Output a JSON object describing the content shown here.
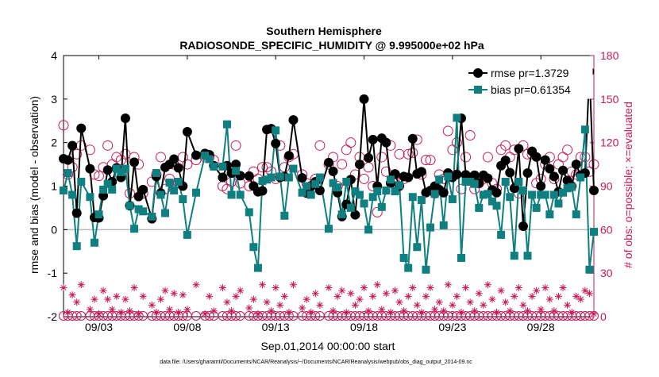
{
  "chart_data": {
    "type": "line",
    "title_line1": "Southern Hemisphere",
    "title_line2": "RADIOSONDE_SPECIFIC_HUMIDITY @ 9.995000e+02 hPa",
    "xlabel": "Sep.01,2014 00:00:00 start",
    "ylabel_left": "rmse and bias (model - observation)",
    "ylabel_right": "# of obs: o=possible; ×=evaluated",
    "footnote": "data file: /Users/gharamti/Documents/NCAR/Reanalysis/~/Documents/NCAR/Reanalysis/webpub/obs_diag_output_2014-09.nc",
    "xlim": [
      1,
      31
    ],
    "ylim_left": [
      -2,
      4
    ],
    "ylim_right": [
      0,
      180
    ],
    "x_ticks": [
      3,
      8,
      13,
      18,
      23,
      28
    ],
    "x_tick_labels": [
      "09/03",
      "09/08",
      "09/13",
      "09/18",
      "09/23",
      "09/28"
    ],
    "y_ticks_left": [
      -2,
      -1,
      0,
      1,
      2,
      3,
      4
    ],
    "y_tick_labels_left": [
      "-2",
      "-1",
      "0",
      "1",
      "2",
      "3",
      "4"
    ],
    "y_ticks_right": [
      0,
      30,
      60,
      90,
      120,
      150,
      180
    ],
    "y_tick_labels_right": [
      "0",
      "30",
      "60",
      "90",
      "120",
      "150",
      "180"
    ],
    "colors": {
      "rmse": "#000000",
      "bias": "#0f7f80",
      "obs": "#c8185a",
      "zero_line": "#bbbbbb"
    },
    "series": [
      {
        "name": "rmse pr=1.3729",
        "axis": "left",
        "x": [
          1.0,
          1.25,
          1.5,
          1.75,
          2.0,
          2.5,
          2.75,
          3.0,
          3.25,
          3.5,
          3.75,
          4.0,
          4.25,
          4.5,
          4.75,
          5.0,
          5.25,
          5.5,
          6.0,
          6.25,
          6.5,
          6.75,
          7.0,
          7.25,
          7.5,
          7.75,
          8.0,
          8.5,
          9.0,
          9.25,
          9.5,
          10.0,
          10.25,
          10.5,
          10.75,
          11.0,
          11.5,
          11.75,
          12.0,
          12.25,
          12.5,
          12.75,
          13.0,
          13.25,
          13.5,
          13.75,
          14.0,
          14.5,
          14.75,
          15.0,
          15.25,
          15.5,
          16.0,
          16.25,
          16.5,
          16.75,
          17.0,
          17.25,
          17.5,
          17.75,
          18.0,
          18.25,
          18.5,
          18.75,
          19.0,
          19.25,
          19.5,
          19.75,
          20.0,
          20.25,
          20.5,
          20.75,
          21.0,
          21.25,
          21.5,
          21.75,
          22.0,
          22.25,
          22.5,
          22.75,
          23.0,
          23.25,
          23.5,
          23.75,
          24.0,
          24.25,
          24.5,
          24.75,
          25.0,
          25.25,
          25.5,
          25.75,
          26.0,
          26.25,
          26.5,
          26.75,
          27.0,
          27.25,
          27.5,
          27.75,
          28.0,
          28.25,
          28.5,
          28.75,
          29.0,
          29.25,
          29.5,
          29.75,
          30.0,
          30.25,
          30.5,
          30.75,
          31.0
        ],
        "values": [
          1.63,
          1.6,
          1.93,
          0.38,
          2.33,
          1.4,
          0.28,
          0.27,
          0.78,
          1.37,
          1.1,
          1.42,
          1.2,
          2.56,
          0.55,
          1.55,
          0.76,
          0.92,
          0.25,
          1.22,
          0.84,
          1.43,
          1.5,
          1.62,
          1.42,
          1.0,
          2.25,
          1.71,
          1.75,
          1.72,
          1.47,
          1.2,
          1.47,
          1.3,
          1.5,
          1.24,
          1.23,
          1.0,
          0.87,
          0.89,
          2.3,
          2.32,
          1.98,
          1.2,
          1.22,
          1.7,
          2.52,
          1.19,
          0.84,
          1.0,
          1.1,
          0.9,
          1.54,
          1.34,
          0.85,
          0.3,
          0.58,
          1.15,
          0.34,
          1.5,
          3.0,
          1.65,
          2.07,
          1.0,
          2.1,
          2.0,
          1.07,
          1.28,
          1.0,
          1.22,
          1.2,
          2.09,
          1.28,
          1.33,
          0.85,
          0.9,
          1.0,
          0.92,
          0.85,
          1.3,
          1.2,
          1.27,
          2.56,
          1.26,
          1.2,
          1.25,
          1.07,
          1.25,
          1.18,
          0.91,
          0.85,
          1.47,
          1.59,
          1.31,
          0.95,
          1.86,
          0.08,
          1.3,
          1.8,
          1.67,
          1.0,
          1.6,
          1.4,
          1.22,
          0.87,
          1.36,
          1.13,
          1.0,
          1.5,
          1.25,
          1.3,
          3.63,
          0.9
        ],
        "marker": "filled-circle"
      },
      {
        "name": "bias pr=0.61354",
        "axis": "left",
        "x": [
          1.0,
          1.25,
          1.5,
          1.75,
          2.0,
          2.5,
          2.75,
          3.0,
          3.25,
          3.5,
          3.75,
          4.0,
          4.25,
          4.5,
          4.75,
          5.0,
          5.25,
          5.5,
          6.0,
          6.25,
          6.5,
          6.75,
          7.0,
          7.25,
          7.5,
          7.75,
          8.0,
          8.5,
          9.0,
          9.25,
          9.5,
          10.0,
          10.25,
          10.5,
          10.75,
          11.0,
          11.5,
          11.75,
          12.0,
          12.25,
          12.5,
          12.75,
          13.0,
          13.25,
          13.5,
          13.75,
          14.0,
          14.5,
          14.75,
          15.0,
          15.25,
          15.5,
          16.0,
          16.25,
          16.5,
          16.75,
          17.0,
          17.25,
          17.5,
          17.75,
          18.0,
          18.25,
          18.5,
          18.75,
          19.0,
          19.25,
          19.5,
          19.75,
          20.0,
          20.25,
          20.5,
          20.75,
          21.0,
          21.25,
          21.5,
          21.75,
          22.0,
          22.25,
          22.5,
          22.75,
          23.0,
          23.25,
          23.5,
          23.75,
          24.0,
          24.25,
          24.5,
          24.75,
          25.0,
          25.25,
          25.5,
          25.75,
          26.0,
          26.25,
          26.5,
          26.75,
          27.0,
          27.25,
          27.5,
          27.75,
          28.0,
          28.25,
          28.5,
          28.75,
          29.0,
          29.25,
          29.5,
          29.75,
          30.0,
          30.25,
          30.5,
          30.75,
          31.0
        ],
        "values": [
          0.9,
          1.3,
          0.8,
          -0.38,
          1.1,
          0.75,
          -0.3,
          0.35,
          0.92,
          1.05,
          0.92,
          1.4,
          1.32,
          1.4,
          0.55,
          0.02,
          0.47,
          0.42,
          0.3,
          1.3,
          0.8,
          0.38,
          1.08,
          0.9,
          1.1,
          0.7,
          -0.12,
          0.85,
          1.7,
          1.62,
          1.45,
          1.45,
          2.42,
          0.8,
          1.35,
          0.8,
          0.4,
          -0.4,
          -0.88,
          1.12,
          1.15,
          1.2,
          2.28,
          1.22,
          0.32,
          1.2,
          1.4,
          0.85,
          1.0,
          0.8,
          1.05,
          1.2,
          0.02,
          1.07,
          0.97,
          0.35,
          1.1,
          0.5,
          0.88,
          0.8,
          0.6,
          0.0,
          0.75,
          0.88,
          0.52,
          0.9,
          1.15,
          0.88,
          1.02,
          -0.65,
          -0.88,
          0.75,
          -0.4,
          0.68,
          -0.92,
          0.05,
          0.82,
          1.15,
          0.1,
          1.22,
          0.7,
          2.57,
          -0.65,
          1.1,
          1.1,
          1.05,
          0.5,
          0.8,
          0.82,
          0.65,
          0.55,
          -0.12,
          1.1,
          0.75,
          -0.6,
          1.1,
          0.9,
          -0.6,
          0.8,
          0.5,
          0.8,
          0.8,
          0.35,
          0.8,
          0.6,
          0.85,
          0.95,
          0.98,
          0.35,
          1.2,
          2.3,
          -0.92,
          -0.05
        ],
        "marker": "filled-square"
      },
      {
        "name": "obs possible",
        "axis": "right",
        "x": [
          1.0,
          1.25,
          1.5,
          1.75,
          2.0,
          2.5,
          2.75,
          3.0,
          3.25,
          3.5,
          3.75,
          4.0,
          4.25,
          4.5,
          4.75,
          5.0,
          5.25,
          5.5,
          6.0,
          6.25,
          6.5,
          6.75,
          7.0,
          7.25,
          7.5,
          7.75,
          8.0,
          8.5,
          9.0,
          9.25,
          9.5,
          10.0,
          10.25,
          10.5,
          10.75,
          11.0,
          11.5,
          11.75,
          12.0,
          12.25,
          12.5,
          12.75,
          13.0,
          13.25,
          13.5,
          13.75,
          14.0,
          14.5,
          14.75,
          15.0,
          15.25,
          15.5,
          16.0,
          16.25,
          16.5,
          16.75,
          17.0,
          17.25,
          17.5,
          17.75,
          18.0,
          18.25,
          18.5,
          18.75,
          19.0,
          19.25,
          19.5,
          19.75,
          20.0,
          20.25,
          20.5,
          20.75,
          21.0,
          21.25,
          21.5,
          21.75,
          22.0,
          22.25,
          22.5,
          22.75,
          23.0,
          23.25,
          23.5,
          23.75,
          24.0,
          24.25,
          24.5,
          24.75,
          25.0,
          25.25,
          25.5,
          25.75,
          26.0,
          26.25,
          26.5,
          26.75,
          27.0,
          27.25,
          27.5,
          27.75,
          28.0,
          28.25,
          28.5,
          28.75,
          29.0,
          29.25,
          29.5,
          29.75,
          30.0,
          30.25,
          30.5,
          30.75,
          31.0
        ],
        "values": [
          132,
          98,
          103,
          112,
          118,
          115,
          98,
          97,
          103,
          118,
          105,
          110,
          108,
          112,
          85,
          110,
          105,
          85,
          93,
          98,
          110,
          88,
          95,
          105,
          92,
          110,
          105,
          108,
          110,
          110,
          108,
          90,
          88,
          93,
          118,
          92,
          90,
          100,
          95,
          103,
          103,
          100,
          95,
          118,
          103,
          110,
          112,
          98,
          92,
          90,
          95,
          118,
          105,
          110,
          90,
          105,
          115,
          120,
          98,
          110,
          95,
          103,
          90,
          72,
          110,
          100,
          118,
          98,
          112,
          95,
          112,
          113,
          122,
          98,
          108,
          108,
          85,
          98,
          95,
          128,
          115,
          120,
          88,
          110,
          125,
          88,
          92,
          95,
          110,
          92,
          88,
          115,
          118,
          110,
          115,
          85,
          118,
          112,
          112,
          92,
          95,
          105,
          110,
          95,
          105,
          110,
          115,
          100,
          98,
          110,
          110,
          100,
          105
        ],
        "marker": "open-circle"
      },
      {
        "name": "obs evaluated",
        "axis": "right",
        "x": [
          1.0,
          1.25,
          1.5,
          1.75,
          2.0,
          2.5,
          2.75,
          3.0,
          3.25,
          3.5,
          3.75,
          4.0,
          4.25,
          4.5,
          4.75,
          5.0,
          5.25,
          5.5,
          6.0,
          6.25,
          6.5,
          6.75,
          7.0,
          7.25,
          7.5,
          7.75,
          8.0,
          8.5,
          9.0,
          9.25,
          9.5,
          10.0,
          10.25,
          10.5,
          10.75,
          11.0,
          11.5,
          11.75,
          12.0,
          12.25,
          12.5,
          12.75,
          13.0,
          13.25,
          13.5,
          13.75,
          14.0,
          14.5,
          14.75,
          15.0,
          15.25,
          15.5,
          16.0,
          16.25,
          16.5,
          16.75,
          17.0,
          17.25,
          17.5,
          17.75,
          18.0,
          18.25,
          18.5,
          18.75,
          19.0,
          19.25,
          19.5,
          19.75,
          20.0,
          20.25,
          20.5,
          20.75,
          21.0,
          21.25,
          21.5,
          21.75,
          22.0,
          22.25,
          22.5,
          22.75,
          23.0,
          23.25,
          23.5,
          23.75,
          24.0,
          24.25,
          24.5,
          24.75,
          25.0,
          25.25,
          25.5,
          25.75,
          26.0,
          26.25,
          26.5,
          26.75,
          27.0,
          27.25,
          27.5,
          27.75,
          28.0,
          28.25,
          28.5,
          28.75,
          29.0,
          29.25,
          29.5,
          29.75,
          30.0,
          30.25,
          30.5,
          30.75,
          31.0
        ],
        "values": [
          20,
          3,
          15,
          10,
          22,
          5,
          12,
          2,
          18,
          12,
          5,
          14,
          3,
          12,
          4,
          20,
          2,
          14,
          8,
          3,
          12,
          18,
          5,
          16,
          3,
          15,
          5,
          22,
          2,
          14,
          4,
          20,
          10,
          4,
          14,
          18,
          6,
          12,
          2,
          22,
          10,
          4,
          20,
          8,
          14,
          3,
          22,
          6,
          12,
          3,
          16,
          8,
          20,
          4,
          14,
          18,
          3,
          16,
          8,
          12,
          20,
          4,
          14,
          22,
          5,
          16,
          3,
          18,
          10,
          4,
          14,
          20,
          8,
          3,
          14,
          20,
          5,
          10,
          4,
          22,
          8,
          14,
          3,
          20,
          10,
          4,
          16,
          8,
          22,
          12,
          3,
          18,
          10,
          4,
          14,
          20,
          8,
          4,
          14,
          18,
          5,
          20,
          12,
          4,
          14,
          20,
          8,
          3,
          14,
          12,
          18,
          16,
          2
        ],
        "marker": "asterisk"
      }
    ]
  }
}
